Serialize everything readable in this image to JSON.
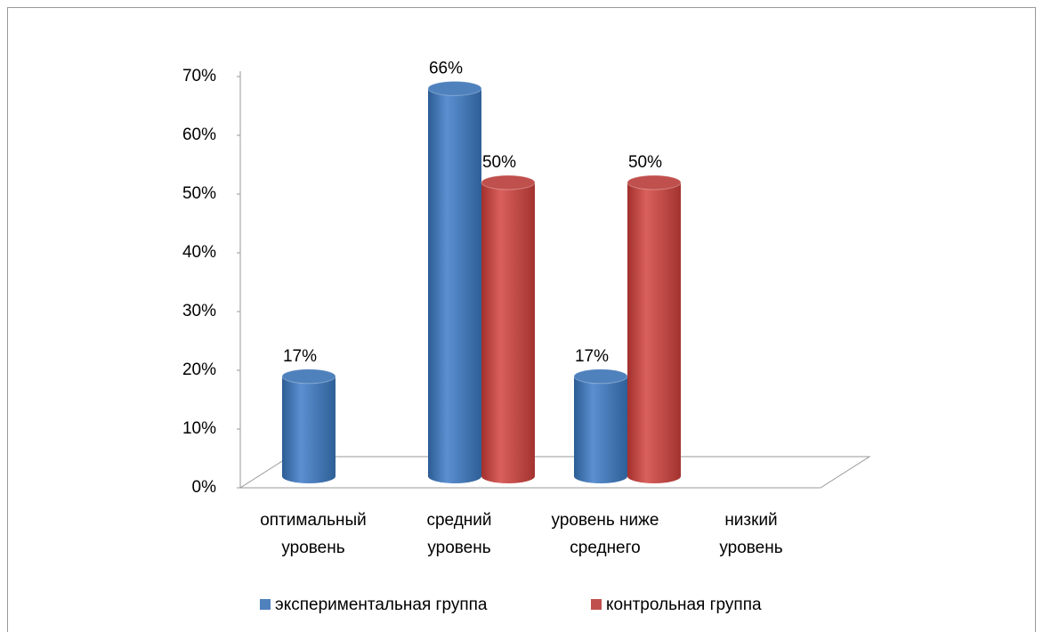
{
  "chart_data": {
    "type": "bar3d",
    "categories": [
      "оптимальный уровень",
      "средний уровень",
      "уровень ниже среднего",
      "низкий уровень"
    ],
    "series": [
      {
        "name": "экспериментальная группа",
        "color": "#4f81bd",
        "values": [
          17,
          66,
          17,
          null
        ],
        "value_labels": [
          "17%",
          "66%",
          "17%",
          null
        ]
      },
      {
        "name": "контрольная группа",
        "color": "#c0504d",
        "values": [
          null,
          50,
          50,
          null
        ],
        "value_labels": [
          null,
          "50%",
          "50%",
          null
        ]
      }
    ],
    "ylim": [
      0,
      70
    ],
    "yticks": [
      {
        "value": 0,
        "label": "0%"
      },
      {
        "value": 10,
        "label": "10%"
      },
      {
        "value": 20,
        "label": "20%"
      },
      {
        "value": 30,
        "label": "30%"
      },
      {
        "value": 40,
        "label": "40%"
      },
      {
        "value": 50,
        "label": "50%"
      },
      {
        "value": 60,
        "label": "60%"
      },
      {
        "value": 70,
        "label": "70%"
      }
    ],
    "legend": "bottom"
  }
}
